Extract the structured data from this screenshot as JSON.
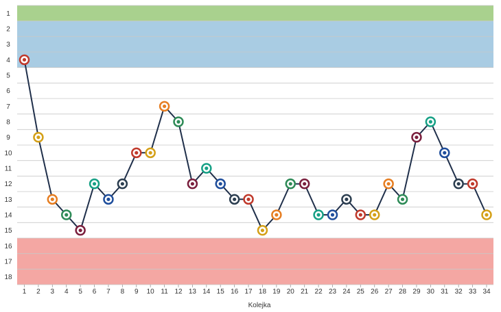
{
  "chart_data": {
    "type": "line",
    "title": "",
    "xlabel": "Kolejka",
    "ylabel": "",
    "x": [
      1,
      2,
      3,
      4,
      5,
      6,
      7,
      8,
      9,
      10,
      11,
      12,
      13,
      14,
      15,
      16,
      17,
      18,
      19,
      20,
      21,
      22,
      23,
      24,
      25,
      26,
      27,
      28,
      29,
      30,
      31,
      32,
      33,
      34
    ],
    "xlim": [
      1,
      34
    ],
    "ylim": [
      1,
      18
    ],
    "y_inverted": true,
    "y_ticks": [
      1,
      2,
      3,
      4,
      5,
      6,
      7,
      8,
      9,
      10,
      11,
      12,
      13,
      14,
      15,
      16,
      17,
      18
    ],
    "series": [
      {
        "values": [
          4,
          9,
          13,
          14,
          15,
          12,
          13,
          12,
          10,
          10,
          7,
          8,
          12,
          11,
          12,
          13,
          13,
          15,
          14,
          12,
          12,
          14,
          14,
          13,
          14,
          14,
          12,
          13,
          9,
          8,
          10,
          12,
          12,
          14
        ],
        "color": "#1f2f4a"
      }
    ],
    "zones": [
      {
        "from": 1,
        "to": 1,
        "color": "#a9d18e"
      },
      {
        "from": 2,
        "to": 4,
        "color": "#a9cce3"
      },
      {
        "from": 5,
        "to": 15,
        "color": "#ffffff"
      },
      {
        "from": 16,
        "to": 18,
        "color": "#f4a7a3"
      }
    ],
    "grid": true,
    "legend": "none"
  }
}
